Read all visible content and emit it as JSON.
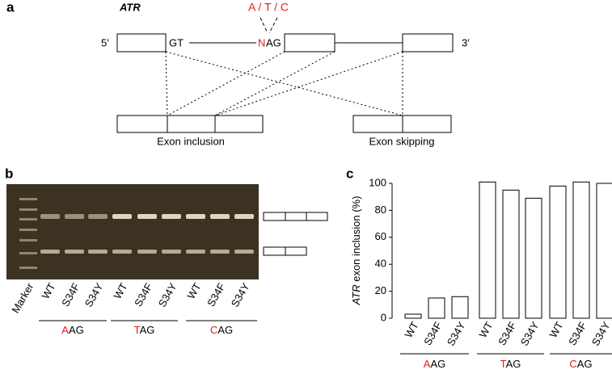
{
  "panel_a": {
    "label": "a",
    "gene": "ATR",
    "variants": "A / T / C",
    "five_prime": "5′",
    "donor": "GT",
    "n": "N",
    "acceptor": "AG",
    "three_prime": "3′",
    "inclusion": "Exon inclusion",
    "skipping": "Exon skipping"
  },
  "panel_b": {
    "label": "b",
    "lanes": [
      "Marker",
      "WT",
      "S34F",
      "S34Y",
      "WT",
      "S34F",
      "S34Y",
      "WT",
      "S34F",
      "S34Y"
    ],
    "groups": [
      {
        "highlight": "A",
        "rest": "AG"
      },
      {
        "highlight": "T",
        "rest": "AG"
      },
      {
        "highlight": "C",
        "rest": "AG"
      }
    ]
  },
  "chart_data": {
    "type": "bar",
    "label": "c",
    "ylabel_gene": "ATR",
    "ylabel": " exon inclusion (%)",
    "categories": [
      "WT",
      "S34F",
      "S34Y",
      "WT",
      "S34F",
      "S34Y",
      "WT",
      "S34F",
      "S34Y"
    ],
    "groups": [
      {
        "highlight": "A",
        "rest": "AG"
      },
      {
        "highlight": "T",
        "rest": "AG"
      },
      {
        "highlight": "C",
        "rest": "AG"
      }
    ],
    "values": [
      3,
      15,
      16,
      101,
      95,
      89,
      98,
      101,
      100
    ],
    "color": "#ffffff",
    "ylim": [
      0,
      100
    ],
    "yticks": [
      0,
      20,
      40,
      60,
      80,
      100
    ]
  }
}
